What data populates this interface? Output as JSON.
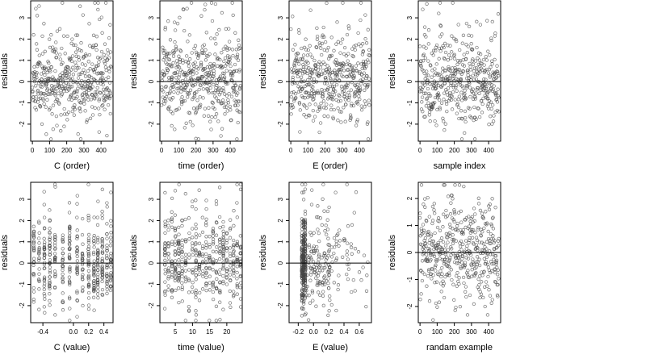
{
  "style": {
    "point_color": "#444444",
    "line_color": "#000000",
    "background": "#ffffff"
  },
  "chart_data": [
    {
      "type": "scatter",
      "xlabel": "C (order)",
      "ylabel": "residuals",
      "xlim": [
        -10,
        470
      ],
      "ylim": [
        -2.8,
        3.8
      ],
      "xticks": [
        0,
        100,
        200,
        300,
        400
      ],
      "xtick_labels": [
        "0",
        "100",
        "200",
        "300",
        "400"
      ],
      "yticks": [
        -2,
        -1,
        0,
        1,
        2,
        3
      ],
      "ytick_labels": [
        "-2",
        "-1",
        "0",
        "1",
        "2",
        "3"
      ],
      "hline": 0,
      "x_pattern": "index",
      "n": 460,
      "seed": 11,
      "x_centers": [],
      "y_spread": 1.0
    },
    {
      "type": "scatter",
      "xlabel": "time (order)",
      "ylabel": "residuals",
      "xlim": [
        -10,
        470
      ],
      "ylim": [
        -2.8,
        3.8
      ],
      "xticks": [
        0,
        100,
        200,
        300,
        400
      ],
      "xtick_labels": [
        "0",
        "100",
        "200",
        "300",
        "400"
      ],
      "yticks": [
        -2,
        -1,
        0,
        1,
        2,
        3
      ],
      "ytick_labels": [
        "-2",
        "-1",
        "0",
        "1",
        "2",
        "3"
      ],
      "hline": 0,
      "x_pattern": "index",
      "n": 460,
      "seed": 23,
      "x_centers": [],
      "y_spread": 1.0
    },
    {
      "type": "scatter",
      "xlabel": "E (order)",
      "ylabel": "residuals",
      "xlim": [
        -10,
        470
      ],
      "ylim": [
        -2.8,
        3.8
      ],
      "xticks": [
        0,
        100,
        200,
        300,
        400
      ],
      "xtick_labels": [
        "0",
        "100",
        "200",
        "300",
        "400"
      ],
      "yticks": [
        -2,
        -1,
        0,
        1,
        2,
        3
      ],
      "ytick_labels": [
        "-2",
        "-1",
        "0",
        "1",
        "2",
        "3"
      ],
      "hline": 0,
      "x_pattern": "index",
      "n": 460,
      "seed": 37,
      "x_centers": [],
      "y_spread": 1.0
    },
    {
      "type": "scatter",
      "xlabel": "sample index",
      "ylabel": "residuals",
      "xlim": [
        -10,
        470
      ],
      "ylim": [
        -2.8,
        3.8
      ],
      "xticks": [
        0,
        100,
        200,
        300,
        400
      ],
      "xtick_labels": [
        "0",
        "100",
        "200",
        "300",
        "400"
      ],
      "yticks": [
        -2,
        -1,
        0,
        1,
        2,
        3
      ],
      "ytick_labels": [
        "-2",
        "-1",
        "0",
        "1",
        "2",
        "3"
      ],
      "hline": 0,
      "x_pattern": "index",
      "n": 460,
      "seed": 41,
      "x_centers": [],
      "y_spread": 1.0
    },
    {
      "type": "scatter",
      "xlabel": "C (value)",
      "ylabel": "residuals",
      "xlim": [
        -0.56,
        0.52
      ],
      "ylim": [
        -2.8,
        3.8
      ],
      "xticks": [
        -0.4,
        0.0,
        0.2,
        0.4
      ],
      "xtick_labels": [
        "-0.4",
        "0.0",
        "0.2",
        "0.4"
      ],
      "yticks": [
        -2,
        -1,
        0,
        1,
        2,
        3
      ],
      "ytick_labels": [
        "-2",
        "-1",
        "0",
        "1",
        "2",
        "3"
      ],
      "hline": 0,
      "x_pattern": "clusters",
      "n": 460,
      "seed": 53,
      "x_centers": [
        -0.52,
        -0.45,
        -0.38,
        -0.31,
        -0.24,
        -0.14,
        -0.05,
        0.05,
        0.12,
        0.2,
        0.27,
        0.32,
        0.38,
        0.44,
        0.49
      ],
      "y_spread": 1.0
    },
    {
      "type": "scatter",
      "xlabel": "time (value)",
      "ylabel": "residuals",
      "xlim": [
        0.5,
        24.5
      ],
      "ylim": [
        -2.8,
        3.8
      ],
      "xticks": [
        5,
        10,
        15,
        20
      ],
      "xtick_labels": [
        "5",
        "10",
        "15",
        "20"
      ],
      "yticks": [
        -2,
        -1,
        0,
        1,
        2,
        3
      ],
      "ytick_labels": [
        "-2",
        "-1",
        "0",
        "1",
        "2",
        "3"
      ],
      "hline": 0,
      "x_pattern": "clusters",
      "n": 460,
      "seed": 67,
      "x_centers": [
        2,
        3,
        4,
        5,
        6,
        7,
        8,
        9,
        10,
        11,
        12,
        13,
        14,
        15,
        16,
        17,
        18,
        19,
        20,
        21,
        22,
        23,
        24
      ],
      "y_spread": 1.0
    },
    {
      "type": "scatter",
      "xlabel": "E (value)",
      "ylabel": "residuals",
      "xlim": [
        -0.32,
        0.76
      ],
      "ylim": [
        -2.8,
        3.8
      ],
      "xticks": [
        -0.2,
        0.0,
        0.2,
        0.4,
        0.6
      ],
      "xtick_labels": [
        "-0.2",
        "0.0",
        "0.2",
        "0.4",
        "0.6"
      ],
      "yticks": [
        -2,
        -1,
        0,
        1,
        2,
        3
      ],
      "ytick_labels": [
        "-2",
        "-1",
        "0",
        "1",
        "2",
        "3"
      ],
      "hline": 0,
      "x_pattern": "skewed",
      "n": 460,
      "seed": 79,
      "x_centers": [
        -0.15,
        -0.13,
        -0.11,
        0.0,
        0.05,
        0.15,
        0.18
      ],
      "y_spread": 1.0
    },
    {
      "type": "scatter",
      "xlabel": "randam example",
      "ylabel": "residuals",
      "xlim": [
        -10,
        470
      ],
      "ylim": [
        -2.6,
        2.6
      ],
      "xticks": [
        0,
        100,
        200,
        300,
        400
      ],
      "xtick_labels": [
        "0",
        "100",
        "200",
        "300",
        "400"
      ],
      "yticks": [
        -2,
        -1,
        0,
        1,
        2
      ],
      "ytick_labels": [
        "-2",
        "-1",
        "0",
        "1",
        "2"
      ],
      "hline": 0,
      "x_pattern": "index",
      "n": 460,
      "seed": 97,
      "x_centers": [],
      "y_spread": 0.9
    }
  ]
}
